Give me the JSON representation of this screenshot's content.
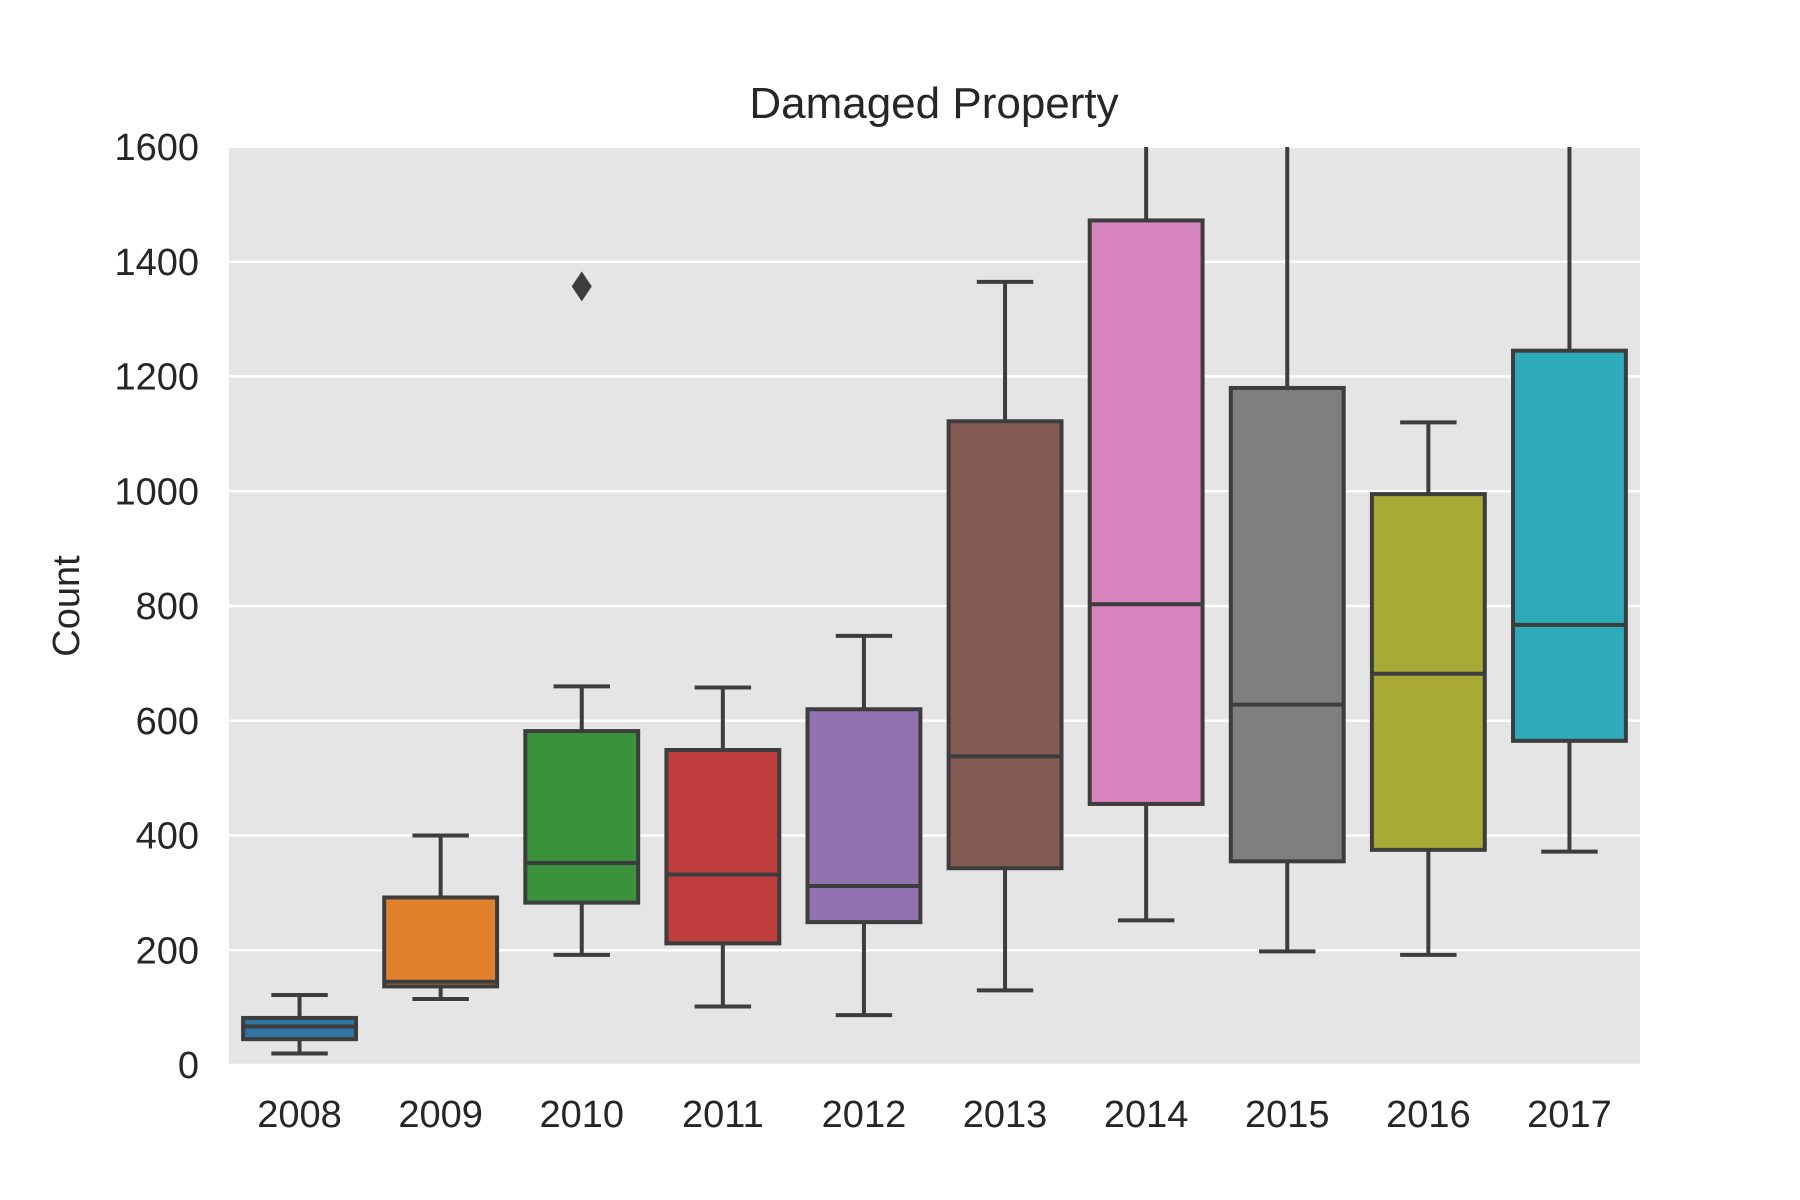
{
  "chart_data": {
    "type": "box",
    "title": "Damaged Property",
    "xlabel": "",
    "ylabel": "Count",
    "ylim": [
      0,
      1600
    ],
    "yticks": [
      0,
      200,
      400,
      600,
      800,
      1000,
      1200,
      1400,
      1600
    ],
    "grid": true,
    "background": "#e5e5e5",
    "box_edge_color": "#3d3d3d",
    "categories": [
      "2008",
      "2009",
      "2010",
      "2011",
      "2012",
      "2013",
      "2014",
      "2015",
      "2016",
      "2017"
    ],
    "boxes": [
      {
        "category": "2008",
        "color": "#3274a1",
        "whisker_low": 20,
        "q1": 45,
        "median": 67,
        "q3": 82,
        "whisker_high": 122,
        "outliers": []
      },
      {
        "category": "2009",
        "color": "#e1812c",
        "whisker_low": 115,
        "q1": 137,
        "median": 145,
        "q3": 292,
        "whisker_high": 400,
        "outliers": []
      },
      {
        "category": "2010",
        "color": "#3a923a",
        "whisker_low": 192,
        "q1": 283,
        "median": 352,
        "q3": 582,
        "whisker_high": 660,
        "outliers": [
          1357
        ]
      },
      {
        "category": "2011",
        "color": "#c03d3e",
        "whisker_low": 102,
        "q1": 212,
        "median": 332,
        "q3": 549,
        "whisker_high": 658,
        "outliers": []
      },
      {
        "category": "2012",
        "color": "#9372b2",
        "whisker_low": 87,
        "q1": 249,
        "median": 312,
        "q3": 620,
        "whisker_high": 748,
        "outliers": []
      },
      {
        "category": "2013",
        "color": "#845b53",
        "whisker_low": 130,
        "q1": 343,
        "median": 538,
        "q3": 1122,
        "whisker_high": 1365,
        "outliers": []
      },
      {
        "category": "2014",
        "color": "#d684bd",
        "whisker_low": 252,
        "q1": 455,
        "median": 803,
        "q3": 1472,
        "whisker_high": 1600,
        "outliers": []
      },
      {
        "category": "2015",
        "color": "#7f7f7f",
        "whisker_low": 198,
        "q1": 355,
        "median": 628,
        "q3": 1180,
        "whisker_high": 1600,
        "outliers": []
      },
      {
        "category": "2016",
        "color": "#a9aa35",
        "whisker_low": 192,
        "q1": 375,
        "median": 682,
        "q3": 995,
        "whisker_high": 1120,
        "outliers": []
      },
      {
        "category": "2017",
        "color": "#2eabb8",
        "whisker_low": 372,
        "q1": 565,
        "median": 767,
        "q3": 1245,
        "whisker_high": 1600,
        "outliers": []
      }
    ]
  }
}
